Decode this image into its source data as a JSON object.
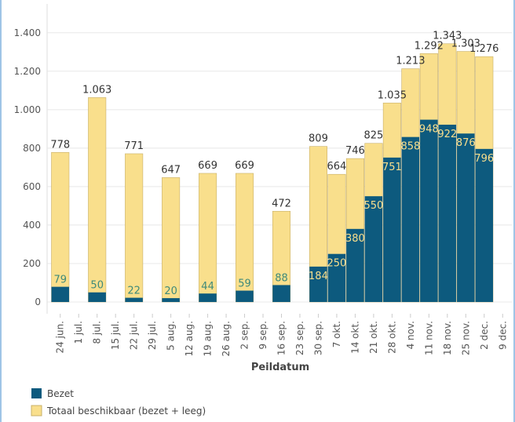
{
  "chart_data": {
    "type": "bar",
    "overlay": true,
    "x_label": "Peildatum",
    "categories": [
      "24 jun.",
      "1 jul.",
      "8 jul.",
      "15 jul.",
      "22 jul.",
      "29 jul.",
      "5 aug.",
      "12 aug.",
      "19 aug.",
      "26 aug.",
      "2 sep.",
      "9 sep.",
      "16 sep.",
      "23 sep.",
      "30 sep.",
      "7 okt.",
      "14 okt.",
      "21 okt.",
      "28 okt.",
      "4 nov.",
      "11 nov.",
      "18 nov.",
      "25 nov.",
      "2 dec.",
      "9 dec."
    ],
    "series": [
      {
        "name": "Totaal beschikbaar (bezet + leeg)",
        "color": "#f9df8c",
        "values": [
          778,
          null,
          1063,
          null,
          771,
          null,
          647,
          null,
          669,
          null,
          669,
          null,
          472,
          null,
          809,
          664,
          746,
          825,
          1035,
          1213,
          1292,
          1343,
          1303,
          1276,
          null
        ],
        "value_labels": [
          "778",
          null,
          "1.063",
          null,
          "771",
          null,
          "647",
          null,
          "669",
          null,
          "669",
          null,
          "472",
          null,
          "809",
          "664",
          "746",
          "825",
          "1.035",
          "1.213",
          "1.292",
          "1.343",
          "1.303",
          "1.276",
          null
        ]
      },
      {
        "name": "Bezet",
        "color": "#0d5a7e",
        "values": [
          79,
          null,
          50,
          null,
          22,
          null,
          20,
          null,
          44,
          null,
          59,
          null,
          88,
          null,
          184,
          250,
          380,
          550,
          751,
          858,
          948,
          922,
          876,
          796,
          null
        ]
      }
    ],
    "ylim": [
      0,
      1550
    ],
    "yticks": [
      0,
      200,
      400,
      600,
      800,
      {
        "value": 1000,
        "label": "1.000"
      },
      {
        "value": 1200,
        "label": "1.200"
      },
      {
        "value": 1400,
        "label": "1.400"
      }
    ],
    "grid": true
  }
}
